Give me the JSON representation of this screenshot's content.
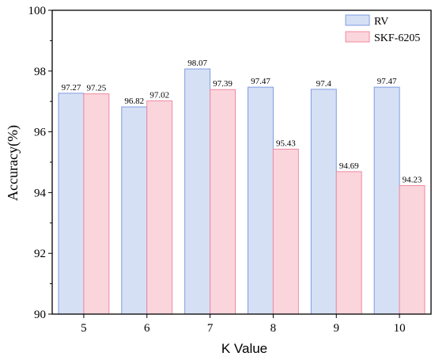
{
  "chart_data": {
    "type": "bar",
    "title": "",
    "xlabel": "K Value",
    "ylabel": "Accuracy(%)",
    "categories": [
      "5",
      "6",
      "7",
      "8",
      "9",
      "10"
    ],
    "ylim": [
      90,
      100
    ],
    "yticks": [
      90,
      92,
      94,
      96,
      98,
      100
    ],
    "grid": false,
    "legend_position": "top-right",
    "series": [
      {
        "name": "RV",
        "values": [
          97.27,
          96.82,
          98.07,
          97.47,
          97.4,
          97.47
        ],
        "labels": [
          "97.27",
          "96.82",
          "98.07",
          "97.47",
          "97.4",
          "97.47"
        ],
        "fill": "#d6e0f5",
        "stroke": "#7f9be0"
      },
      {
        "name": "SKF-6205",
        "values": [
          97.25,
          97.02,
          97.39,
          95.43,
          94.69,
          94.23
        ],
        "labels": [
          "97.25",
          "97.02",
          "97.39",
          "95.43",
          "94.69",
          "94.23"
        ],
        "fill": "#fbd5dc",
        "stroke": "#f08aa0"
      }
    ]
  }
}
